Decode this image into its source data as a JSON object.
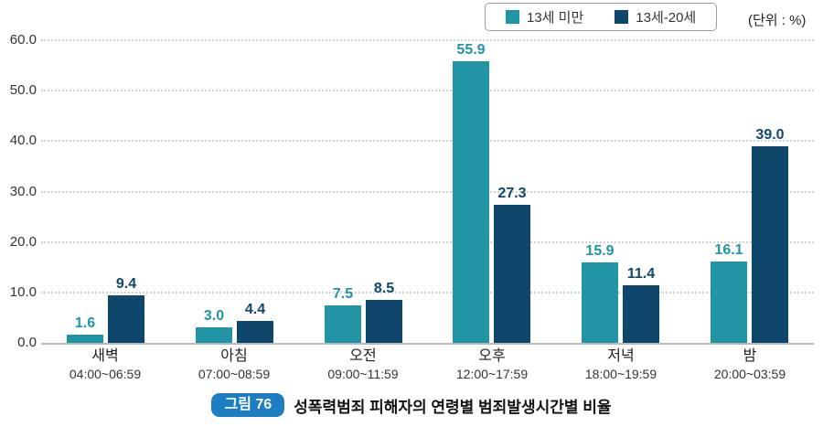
{
  "legend": {
    "items": [
      {
        "label": "13세 미만",
        "color": "#2195A6"
      },
      {
        "label": "13세-20세",
        "color": "#0F466B"
      }
    ]
  },
  "unit_label": "(단위 : %)",
  "chart_data": {
    "type": "bar",
    "categories": [
      "새벽",
      "아침",
      "오전",
      "오후",
      "저녁",
      "밤"
    ],
    "category_sublabels": [
      "04:00~06:59",
      "07:00~08:59",
      "09:00~11:59",
      "12:00~17:59",
      "18:00~19:59",
      "20:00~03:59"
    ],
    "series": [
      {
        "name": "13세 미만",
        "color": "#2195A6",
        "values": [
          1.6,
          3.0,
          7.5,
          55.9,
          15.9,
          16.1
        ]
      },
      {
        "name": "13세-20세",
        "color": "#0F466B",
        "values": [
          9.4,
          4.4,
          8.5,
          27.3,
          11.4,
          39.0
        ]
      }
    ],
    "ylim": [
      0,
      60
    ],
    "ytick_step": 10,
    "ytick_labels": [
      "0.0",
      "10.0",
      "20.0",
      "30.0",
      "40.0",
      "50.0",
      "60.0"
    ],
    "grid": "horizontal-dotted",
    "legend_position": "top-right",
    "value_labels": true,
    "value_label_decimals": 1
  },
  "caption": {
    "badge": "그림 76",
    "badge_color": "#1D7DC2",
    "title": "성폭력범죄 피해자의 연령별 범죄발생시간별 비율"
  }
}
